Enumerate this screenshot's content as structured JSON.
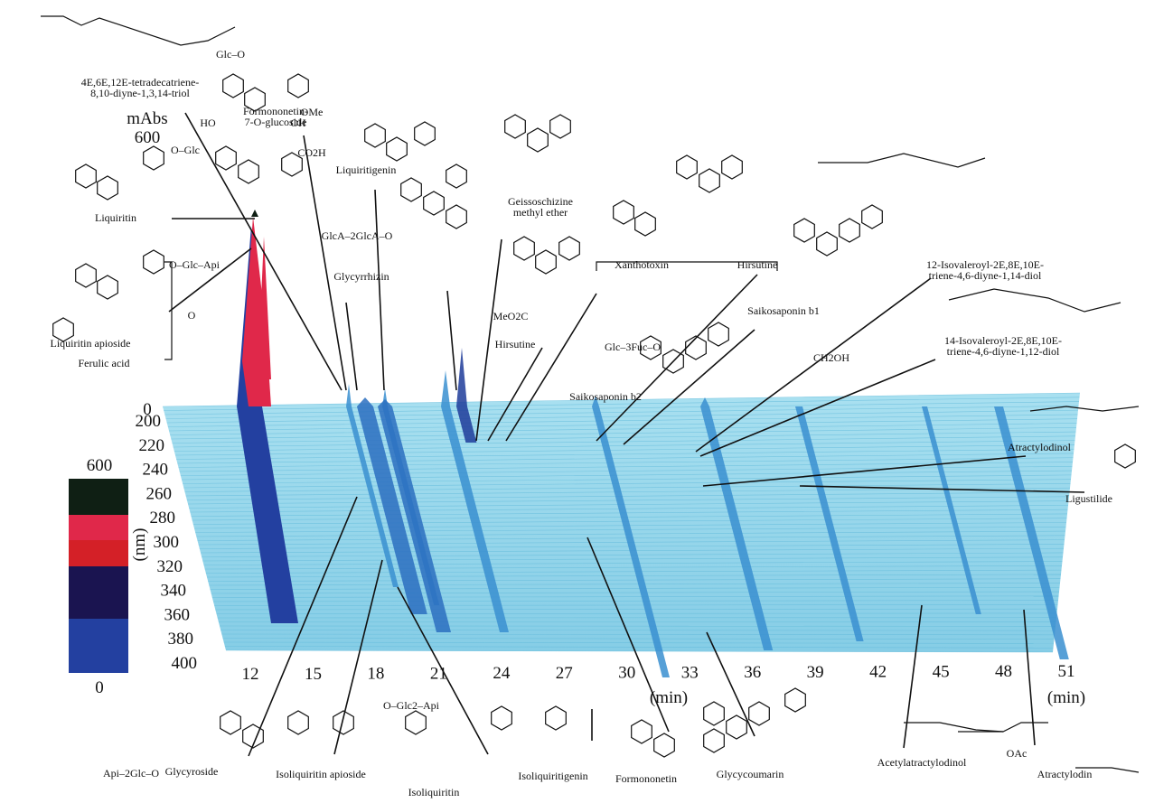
{
  "axes": {
    "absorbance_unit": "mAbs",
    "absorbance_max": "600",
    "absorbance_min": "0",
    "colorbar_max": "600",
    "colorbar_min": "0",
    "wavelength_label": "(nm)",
    "wavelength_ticks": [
      200,
      220,
      240,
      260,
      280,
      300,
      320,
      340,
      360,
      380,
      400
    ],
    "time_label": "(min)",
    "time_label_right": "(min)",
    "time_ticks": [
      12,
      15,
      18,
      21,
      24,
      27,
      30,
      33,
      36,
      39,
      42,
      45,
      48,
      51
    ]
  },
  "compounds_top": [
    {
      "label": [
        "4E,6E,12E-tetradecatriene-",
        "8,10-diyne-1,3,14-triol"
      ]
    },
    {
      "label": [
        "Formononetin-",
        "7-O-glucoside"
      ]
    },
    {
      "label": [
        "Liquiritigenin"
      ]
    },
    {
      "label": [
        "Geissoschizine",
        "methyl ether"
      ]
    },
    {
      "label": [
        "Glycyrrhizin"
      ]
    },
    {
      "label": [
        "Xanthotoxin"
      ]
    },
    {
      "label": [
        "Hirsutine"
      ]
    },
    {
      "label": [
        "Hirsutine"
      ]
    },
    {
      "label": [
        "Liquiritin"
      ]
    },
    {
      "label": [
        "Liquiritin apioside"
      ]
    },
    {
      "label": [
        "Ferulic acid"
      ]
    },
    {
      "label": [
        "Saikosaponin b1"
      ]
    },
    {
      "label": [
        "Saikosaponin b2"
      ]
    },
    {
      "label": [
        "12-Isovaleroyl-2E,8E,10E-",
        "triene-4,6-diyne-1,14-diol"
      ]
    },
    {
      "label": [
        "14-Isovaleroyl-2E,8E,10E-",
        "triene-4,6-diyne-1,12-diol"
      ]
    },
    {
      "label": [
        "Atractylodinol"
      ]
    },
    {
      "label": [
        "Ligustilide"
      ]
    }
  ],
  "compounds_bottom": [
    {
      "label": [
        "Glycyroside"
      ]
    },
    {
      "label": [
        "Isoliquiritin apioside"
      ]
    },
    {
      "label": [
        "Isoliquiritin"
      ]
    },
    {
      "label": [
        "Isoliquiritigenin"
      ]
    },
    {
      "label": [
        "Formononetin"
      ]
    },
    {
      "label": [
        "Glycycoumarin"
      ]
    },
    {
      "label": [
        "Acetylatractylodinol"
      ]
    },
    {
      "label": [
        "Atractylodin"
      ]
    }
  ],
  "fragments": [
    "Glc–O",
    "OMe",
    "O–Glc",
    "O–Glc–Api",
    "CO2H",
    "HO",
    "OH",
    "O",
    "GlcA–2GlcA–O",
    "Api–2Glc–O",
    "O–Glc2–Api",
    "OAc",
    "MeO2C",
    "Glc–3Fuc–O",
    "CH2OH"
  ]
}
